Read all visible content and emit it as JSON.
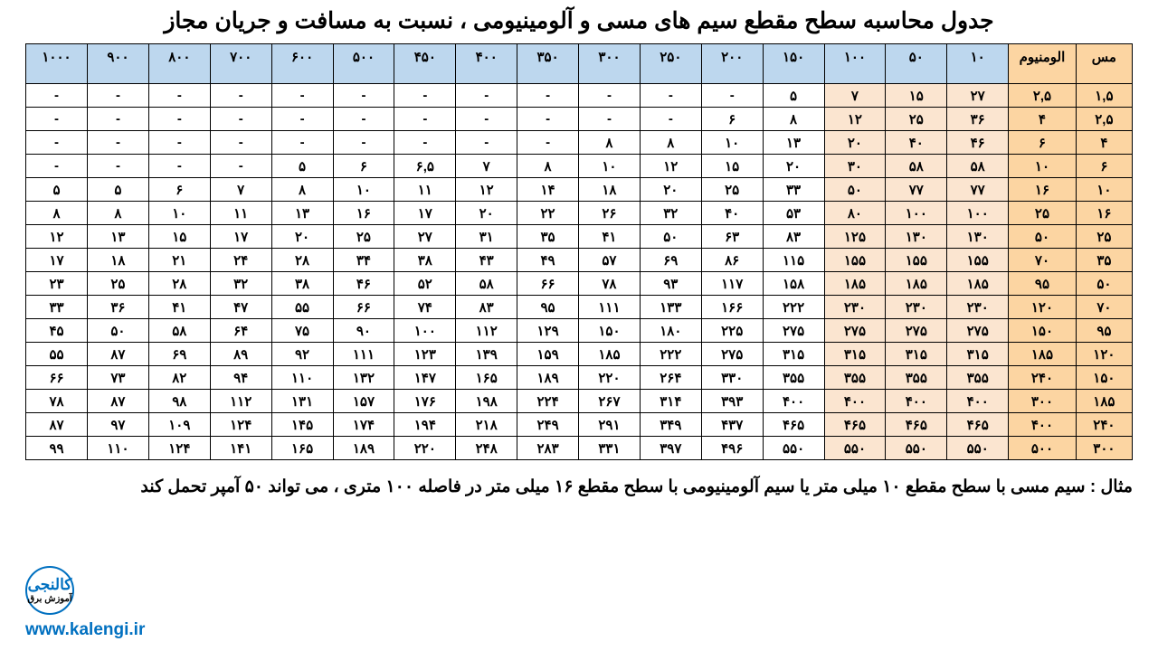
{
  "title": "جدول محاسبه سطح مقطع سیم های مسی و آلومینیومی ، نسبت به مسافت و جریان مجاز",
  "columns": {
    "copper": "مس",
    "aluminum": "الومنیوم",
    "distances": [
      "۱۰",
      "۵۰",
      "۱۰۰",
      "۱۵۰",
      "۲۰۰",
      "۲۵۰",
      "۳۰۰",
      "۳۵۰",
      "۴۰۰",
      "۴۵۰",
      "۵۰۰",
      "۶۰۰",
      "۷۰۰",
      "۸۰۰",
      "۹۰۰",
      "۱۰۰۰"
    ]
  },
  "rows": [
    {
      "cu": "۱,۵",
      "al": "۲,۵",
      "v": [
        "۲۷",
        "۱۵",
        "۷",
        "۵",
        "-",
        "-",
        "-",
        "-",
        "-",
        "-",
        "-",
        "-",
        "-",
        "-",
        "-",
        "-"
      ]
    },
    {
      "cu": "۲,۵",
      "al": "۴",
      "v": [
        "۳۶",
        "۲۵",
        "۱۲",
        "۸",
        "۶",
        "-",
        "-",
        "-",
        "-",
        "-",
        "-",
        "-",
        "-",
        "-",
        "-",
        "-"
      ]
    },
    {
      "cu": "۴",
      "al": "۶",
      "v": [
        "۴۶",
        "۴۰",
        "۲۰",
        "۱۳",
        "۱۰",
        "۸",
        "۸",
        "-",
        "-",
        "-",
        "-",
        "-",
        "-",
        "-",
        "-",
        "-"
      ]
    },
    {
      "cu": "۶",
      "al": "۱۰",
      "v": [
        "۵۸",
        "۵۸",
        "۳۰",
        "۲۰",
        "۱۵",
        "۱۲",
        "۱۰",
        "۸",
        "۷",
        "۶,۵",
        "۶",
        "۵",
        "-",
        "-",
        "-",
        "-"
      ]
    },
    {
      "cu": "۱۰",
      "al": "۱۶",
      "v": [
        "۷۷",
        "۷۷",
        "۵۰",
        "۳۳",
        "۲۵",
        "۲۰",
        "۱۸",
        "۱۴",
        "۱۲",
        "۱۱",
        "۱۰",
        "۸",
        "۷",
        "۶",
        "۵",
        "۵"
      ]
    },
    {
      "cu": "۱۶",
      "al": "۲۵",
      "v": [
        "۱۰۰",
        "۱۰۰",
        "۸۰",
        "۵۳",
        "۴۰",
        "۳۲",
        "۲۶",
        "۲۲",
        "۲۰",
        "۱۷",
        "۱۶",
        "۱۳",
        "۱۱",
        "۱۰",
        "۸",
        "۸"
      ]
    },
    {
      "cu": "۲۵",
      "al": "۵۰",
      "v": [
        "۱۳۰",
        "۱۳۰",
        "۱۲۵",
        "۸۳",
        "۶۳",
        "۵۰",
        "۴۱",
        "۳۵",
        "۳۱",
        "۲۷",
        "۲۵",
        "۲۰",
        "۱۷",
        "۱۵",
        "۱۳",
        "۱۲"
      ]
    },
    {
      "cu": "۳۵",
      "al": "۷۰",
      "v": [
        "۱۵۵",
        "۱۵۵",
        "۱۵۵",
        "۱۱۵",
        "۸۶",
        "۶۹",
        "۵۷",
        "۴۹",
        "۴۳",
        "۳۸",
        "۳۴",
        "۲۸",
        "۲۴",
        "۲۱",
        "۱۸",
        "۱۷"
      ]
    },
    {
      "cu": "۵۰",
      "al": "۹۵",
      "v": [
        "۱۸۵",
        "۱۸۵",
        "۱۸۵",
        "۱۵۸",
        "۱۱۷",
        "۹۳",
        "۷۸",
        "۶۶",
        "۵۸",
        "۵۲",
        "۴۶",
        "۳۸",
        "۳۲",
        "۲۸",
        "۲۵",
        "۲۳"
      ]
    },
    {
      "cu": "۷۰",
      "al": "۱۲۰",
      "v": [
        "۲۳۰",
        "۲۳۰",
        "۲۳۰",
        "۲۲۲",
        "۱۶۶",
        "۱۳۳",
        "۱۱۱",
        "۹۵",
        "۸۳",
        "۷۴",
        "۶۶",
        "۵۵",
        "۴۷",
        "۴۱",
        "۳۶",
        "۳۳"
      ]
    },
    {
      "cu": "۹۵",
      "al": "۱۵۰",
      "v": [
        "۲۷۵",
        "۲۷۵",
        "۲۷۵",
        "۲۷۵",
        "۲۲۵",
        "۱۸۰",
        "۱۵۰",
        "۱۲۹",
        "۱۱۲",
        "۱۰۰",
        "۹۰",
        "۷۵",
        "۶۴",
        "۵۸",
        "۵۰",
        "۴۵"
      ]
    },
    {
      "cu": "۱۲۰",
      "al": "۱۸۵",
      "v": [
        "۳۱۵",
        "۳۱۵",
        "۳۱۵",
        "۳۱۵",
        "۲۷۵",
        "۲۲۲",
        "۱۸۵",
        "۱۵۹",
        "۱۳۹",
        "۱۲۳",
        "۱۱۱",
        "۹۲",
        "۸۹",
        "۶۹",
        "۸۷",
        "۵۵"
      ]
    },
    {
      "cu": "۱۵۰",
      "al": "۲۴۰",
      "v": [
        "۳۵۵",
        "۳۵۵",
        "۳۵۵",
        "۳۵۵",
        "۳۳۰",
        "۲۶۴",
        "۲۲۰",
        "۱۸۹",
        "۱۶۵",
        "۱۴۷",
        "۱۳۲",
        "۱۱۰",
        "۹۴",
        "۸۲",
        "۷۳",
        "۶۶"
      ]
    },
    {
      "cu": "۱۸۵",
      "al": "۳۰۰",
      "v": [
        "۴۰۰",
        "۴۰۰",
        "۴۰۰",
        "۴۰۰",
        "۳۹۳",
        "۳۱۴",
        "۲۶۷",
        "۲۲۴",
        "۱۹۸",
        "۱۷۶",
        "۱۵۷",
        "۱۳۱",
        "۱۱۲",
        "۹۸",
        "۸۷",
        "۷۸"
      ]
    },
    {
      "cu": "۲۴۰",
      "al": "۴۰۰",
      "v": [
        "۴۶۵",
        "۴۶۵",
        "۴۶۵",
        "۴۶۵",
        "۴۳۷",
        "۳۴۹",
        "۲۹۱",
        "۲۴۹",
        "۲۱۸",
        "۱۹۴",
        "۱۷۴",
        "۱۴۵",
        "۱۲۴",
        "۱۰۹",
        "۹۷",
        "۸۷"
      ]
    },
    {
      "cu": "۳۰۰",
      "al": "۵۰۰",
      "v": [
        "۵۵۰",
        "۵۵۰",
        "۵۵۰",
        "۵۵۰",
        "۴۹۶",
        "۳۹۷",
        "۳۳۱",
        "۲۸۳",
        "۲۴۸",
        "۲۲۰",
        "۱۸۹",
        "۱۶۵",
        "۱۴۱",
        "۱۲۴",
        "۱۱۰",
        "۹۹"
      ]
    }
  ],
  "example": "مثال : سیم مسی با سطح مقطع ۱۰ میلی متر یا سیم آلومینیومی با سطح مقطع ۱۶ میلی متر در فاصله ۱۰۰ متری ، می تواند ۵۰ آمپر تحمل کند",
  "logo": {
    "main": "کالنجی",
    "sub": "آموزش برق"
  },
  "url": "www.kalengi.ir",
  "style": {
    "header_yellow": "#fcd5a2",
    "cell_yellow": "#fbe5d0",
    "header_blue": "#bdd7ee",
    "border": "#000000",
    "accent": "#0070c0",
    "title_fontsize": 25,
    "cell_fontsize": 15,
    "example_fontsize": 19,
    "yellow_data_cols": [
      0,
      1,
      2
    ]
  }
}
